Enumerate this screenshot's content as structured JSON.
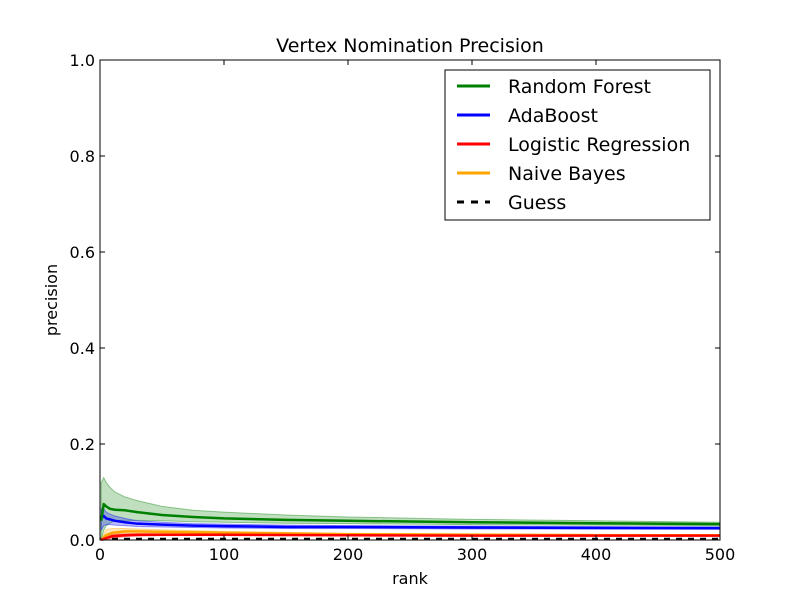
{
  "chart_data": {
    "type": "line",
    "title": "Vertex Nomination Precision",
    "xlabel": "rank",
    "ylabel": "precision",
    "xlim": [
      0,
      500
    ],
    "ylim": [
      0,
      1.0
    ],
    "x_ticks": [
      0,
      100,
      200,
      300,
      400,
      500
    ],
    "x_tick_labels": [
      "0",
      "100",
      "200",
      "300",
      "400",
      "500"
    ],
    "y_ticks": [
      0.0,
      0.2,
      0.4,
      0.6,
      0.8,
      1.0
    ],
    "y_tick_labels": [
      "0.0",
      "0.2",
      "0.4",
      "0.6",
      "0.8",
      "1.0"
    ],
    "grid": false,
    "legend_position": "top-right",
    "series": [
      {
        "name": "Random Forest",
        "color": "#008000",
        "style": "solid",
        "band_color": "#008000",
        "x": [
          1,
          3,
          5,
          8,
          12,
          20,
          30,
          50,
          75,
          100,
          150,
          200,
          300,
          400,
          500
        ],
        "y": [
          0.04,
          0.075,
          0.07,
          0.065,
          0.063,
          0.062,
          0.058,
          0.052,
          0.048,
          0.045,
          0.042,
          0.04,
          0.037,
          0.035,
          0.033
        ],
        "y_lower": [
          0.0,
          0.02,
          0.03,
          0.035,
          0.04,
          0.041,
          0.041,
          0.04,
          0.038,
          0.037,
          0.035,
          0.034,
          0.032,
          0.031,
          0.03
        ],
        "y_upper": [
          0.12,
          0.13,
          0.12,
          0.11,
          0.1,
          0.09,
          0.082,
          0.07,
          0.062,
          0.058,
          0.052,
          0.048,
          0.043,
          0.04,
          0.037
        ]
      },
      {
        "name": "AdaBoost",
        "color": "#0000ff",
        "style": "solid",
        "band_color": "#0000ff",
        "x": [
          1,
          3,
          5,
          8,
          12,
          20,
          30,
          50,
          75,
          100,
          150,
          200,
          300,
          400,
          500
        ],
        "y": [
          0.045,
          0.05,
          0.045,
          0.043,
          0.04,
          0.037,
          0.034,
          0.032,
          0.03,
          0.029,
          0.027,
          0.027,
          0.026,
          0.025,
          0.025
        ],
        "y_lower": [
          0.02,
          0.03,
          0.032,
          0.032,
          0.031,
          0.03,
          0.028,
          0.027,
          0.026,
          0.025,
          0.024,
          0.024,
          0.023,
          0.023,
          0.022
        ],
        "y_upper": [
          0.065,
          0.065,
          0.058,
          0.054,
          0.05,
          0.045,
          0.04,
          0.037,
          0.034,
          0.033,
          0.031,
          0.03,
          0.029,
          0.028,
          0.027
        ]
      },
      {
        "name": "Logistic Regression",
        "color": "#ff0000",
        "style": "solid",
        "band_color": "#ff0000",
        "x": [
          1,
          5,
          10,
          20,
          30,
          50,
          100,
          200,
          300,
          400,
          500
        ],
        "y": [
          0.0,
          0.004,
          0.008,
          0.01,
          0.011,
          0.011,
          0.011,
          0.01,
          0.009,
          0.009,
          0.009
        ],
        "y_lower": [
          0.0,
          0.0,
          0.004,
          0.007,
          0.008,
          0.009,
          0.009,
          0.009,
          0.008,
          0.008,
          0.008
        ],
        "y_upper": [
          0.0,
          0.008,
          0.012,
          0.013,
          0.013,
          0.013,
          0.012,
          0.011,
          0.01,
          0.01,
          0.01
        ]
      },
      {
        "name": "Naive Bayes",
        "color": "#ffa500",
        "style": "solid",
        "band_color": "#ffa500",
        "x": [
          1,
          5,
          10,
          20,
          30,
          50,
          100,
          200,
          300,
          400,
          500
        ],
        "y": [
          0.0,
          0.01,
          0.015,
          0.018,
          0.018,
          0.017,
          0.015,
          0.012,
          0.011,
          0.01,
          0.01
        ],
        "y_lower": [
          0.0,
          0.003,
          0.008,
          0.012,
          0.013,
          0.013,
          0.012,
          0.01,
          0.009,
          0.009,
          0.009
        ],
        "y_upper": [
          0.0,
          0.022,
          0.024,
          0.024,
          0.023,
          0.021,
          0.018,
          0.014,
          0.013,
          0.012,
          0.011
        ]
      },
      {
        "name": "Guess",
        "color": "#000000",
        "style": "dashed",
        "x": [
          0,
          500
        ],
        "y": [
          0.002,
          0.002
        ]
      }
    ]
  }
}
